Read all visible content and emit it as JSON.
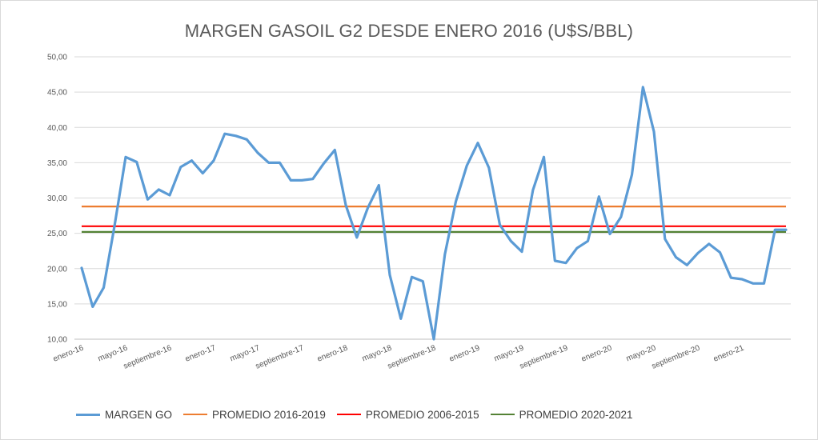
{
  "chart_data": {
    "type": "line",
    "title": "MARGEN GASOIL G2 DESDE ENERO 2016 (U$S/BBL)",
    "xlabel": "",
    "ylabel": "",
    "ylim": [
      10,
      50
    ],
    "yticks": [
      "10,00",
      "15,00",
      "20,00",
      "25,00",
      "30,00",
      "35,00",
      "40,00",
      "45,00",
      "50,00"
    ],
    "ytick_values": [
      10,
      15,
      20,
      25,
      30,
      35,
      40,
      45,
      50
    ],
    "grid": true,
    "legend_position": "bottom",
    "x_labels": [
      {
        "index": 0,
        "label": "enero-16"
      },
      {
        "index": 4,
        "label": "mayo-16"
      },
      {
        "index": 8,
        "label": "septiembre-16"
      },
      {
        "index": 12,
        "label": "enero-17"
      },
      {
        "index": 16,
        "label": "mayo-17"
      },
      {
        "index": 20,
        "label": "septiembre-17"
      },
      {
        "index": 24,
        "label": "enero-18"
      },
      {
        "index": 28,
        "label": "mayo-18"
      },
      {
        "index": 32,
        "label": "septiembre-18"
      },
      {
        "index": 36,
        "label": "enero-19"
      },
      {
        "index": 40,
        "label": "mayo-19"
      },
      {
        "index": 44,
        "label": "septiembre-19"
      },
      {
        "index": 48,
        "label": "enero-20"
      },
      {
        "index": 52,
        "label": "mayo-20"
      },
      {
        "index": 56,
        "label": "septiembre-20"
      },
      {
        "index": 60,
        "label": "enero-21"
      }
    ],
    "point_count": 65,
    "series": [
      {
        "name": "MARGEN GO",
        "color": "#5b9bd5",
        "values": [
          20.1,
          14.6,
          17.3,
          26.2,
          35.8,
          35.1,
          29.8,
          31.2,
          30.4,
          34.4,
          35.3,
          33.5,
          35.3,
          39.1,
          38.8,
          38.3,
          36.4,
          35.0,
          35.0,
          32.5,
          32.5,
          32.7,
          34.9,
          36.8,
          29.0,
          24.4,
          28.6,
          31.8,
          19.1,
          12.9,
          18.8,
          18.2,
          9.8,
          22.0,
          29.5,
          34.6,
          37.8,
          34.3,
          26.2,
          23.9,
          22.4,
          31.1,
          35.8,
          21.1,
          20.8,
          22.9,
          23.9,
          30.2,
          24.9,
          27.3,
          33.3,
          45.7,
          39.4,
          24.2,
          21.6,
          20.5,
          22.2,
          23.5,
          22.3,
          18.7,
          18.5,
          17.9,
          17.9,
          25.5,
          25.5
        ]
      },
      {
        "name": "PROMEDIO 2016-2019",
        "color": "#ed7d31",
        "constant": 28.8
      },
      {
        "name": "PROMEDIO 2006-2015",
        "color": "#ff0000",
        "constant": 26.0
      },
      {
        "name": "PROMEDIO 2020-2021",
        "color": "#548235",
        "constant": 25.2
      }
    ]
  },
  "legend": [
    {
      "label": "MARGEN GO",
      "color": "#5b9bd5"
    },
    {
      "label": "PROMEDIO 2016-2019",
      "color": "#ed7d31"
    },
    {
      "label": "PROMEDIO 2006-2015",
      "color": "#ff0000"
    },
    {
      "label": "PROMEDIO 2020-2021",
      "color": "#548235"
    }
  ]
}
